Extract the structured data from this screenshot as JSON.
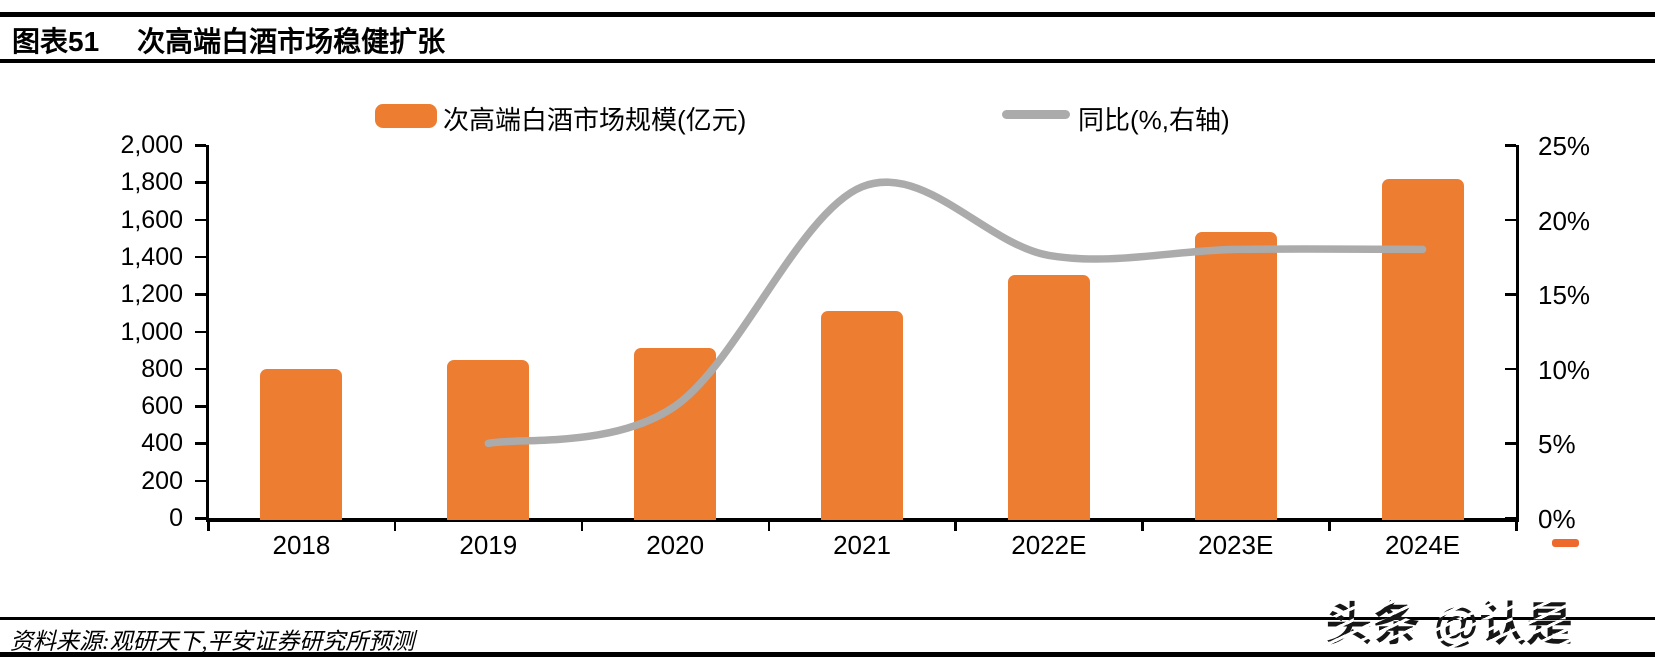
{
  "header": {
    "title_prefix": "图表51",
    "title": "次高端白酒市场稳健扩张"
  },
  "legend": {
    "bar_label": "次高端白酒市场规模(亿元)",
    "line_label": "同比(%,右轴)"
  },
  "colors": {
    "bar": "#ED7D31",
    "line": "#ABABAB",
    "rule": "#000000",
    "watermark_dash": "#ED6A2C"
  },
  "chart_data": {
    "type": "bar+line combo",
    "categories": [
      "2018",
      "2019",
      "2020",
      "2021",
      "2022E",
      "2023E",
      "2024E"
    ],
    "series": [
      {
        "name": "次高端白酒市场规模(亿元)",
        "type": "bar",
        "axis": "left",
        "color": "#ED7D31",
        "values": [
          800,
          845,
          910,
          1110,
          1305,
          1535,
          1820
        ]
      },
      {
        "name": "同比(%,右轴)",
        "type": "line",
        "axis": "right",
        "color": "#ABABAB",
        "values": [
          null,
          5.0,
          7.5,
          22.2,
          17.6,
          18.0,
          18.0
        ]
      }
    ],
    "left_axis": {
      "min": 0,
      "max": 2000,
      "step": 200,
      "tick_labels": [
        "2,000",
        "1,800",
        "1,600",
        "1,400",
        "1,200",
        "1,000",
        "800",
        "600",
        "400",
        "200",
        "0"
      ]
    },
    "right_axis": {
      "min": 0,
      "max": 25,
      "step": 5,
      "tick_labels": [
        "25%",
        "20%",
        "15%",
        "10%",
        "5%",
        "0%"
      ]
    },
    "grid": false,
    "legend_position": "top"
  },
  "footer": {
    "source": "资料来源:观研天下,平安证券研究所预测"
  },
  "watermark": {
    "text": "头条 @认是"
  }
}
